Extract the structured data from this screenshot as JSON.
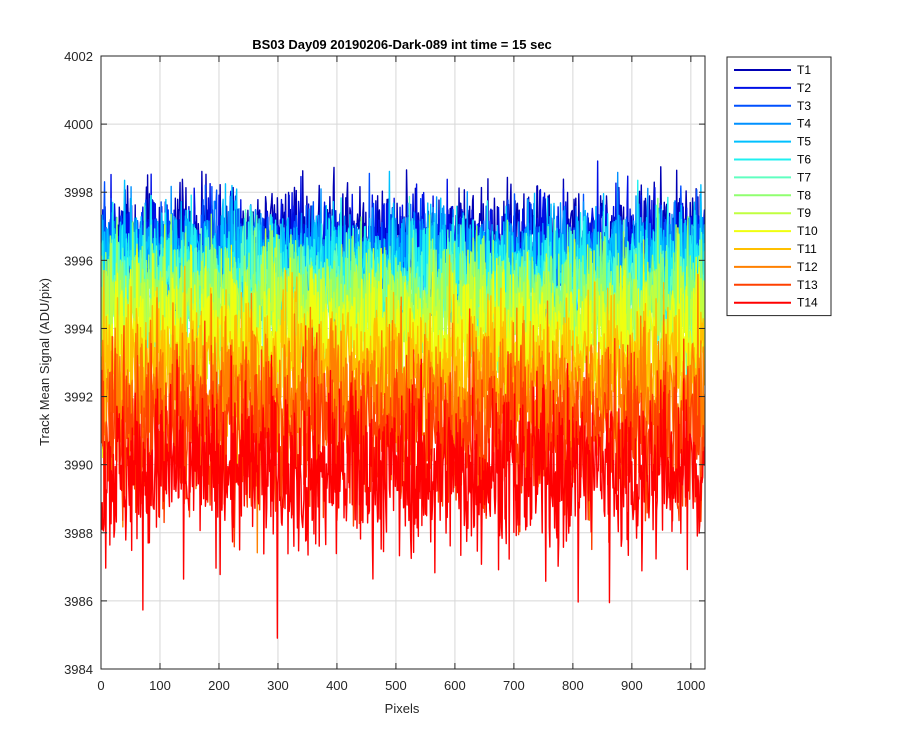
{
  "chart_data": {
    "type": "line",
    "title": "BS03 Day09 20190206-Dark-089 int time = 15 sec",
    "xlabel": "Pixels",
    "ylabel": "Track Mean Signal (ADU/pix)",
    "xlim": [
      0,
      1024
    ],
    "ylim": [
      3984,
      4002
    ],
    "xticks": [
      0,
      100,
      200,
      300,
      400,
      500,
      600,
      700,
      800,
      900,
      1000
    ],
    "yticks": [
      3984,
      3986,
      3988,
      3990,
      3992,
      3994,
      3996,
      3998,
      4000,
      4002
    ],
    "grid": true,
    "legend_position": "outside-right",
    "n_points": 1024,
    "series": [
      {
        "name": "T1",
        "color": "#0000b4",
        "mean": 3996.7,
        "noise": 0.75
      },
      {
        "name": "T2",
        "color": "#0010e6",
        "mean": 3996.4,
        "noise": 0.75
      },
      {
        "name": "T3",
        "color": "#0050ff",
        "mean": 3996.0,
        "noise": 0.8
      },
      {
        "name": "T4",
        "color": "#0090ff",
        "mean": 3995.9,
        "noise": 0.8
      },
      {
        "name": "T5",
        "color": "#00c0ff",
        "mean": 3995.9,
        "noise": 0.85
      },
      {
        "name": "T6",
        "color": "#20f0f0",
        "mean": 3995.5,
        "noise": 0.85
      },
      {
        "name": "T7",
        "color": "#60ffc0",
        "mean": 3995.0,
        "noise": 0.9
      },
      {
        "name": "T8",
        "color": "#90ff70",
        "mean": 3994.8,
        "noise": 0.9
      },
      {
        "name": "T9",
        "color": "#c0ff40",
        "mean": 3994.3,
        "noise": 0.95
      },
      {
        "name": "T10",
        "color": "#f0ff10",
        "mean": 3993.6,
        "noise": 1.0
      },
      {
        "name": "T11",
        "color": "#ffc000",
        "mean": 3992.8,
        "noise": 1.05
      },
      {
        "name": "T12",
        "color": "#ff8000",
        "mean": 3991.9,
        "noise": 1.1
      },
      {
        "name": "T13",
        "color": "#ff4000",
        "mean": 3990.9,
        "noise": 1.15
      },
      {
        "name": "T14",
        "color": "#ff0000",
        "mean": 3989.8,
        "noise": 1.2
      }
    ]
  }
}
